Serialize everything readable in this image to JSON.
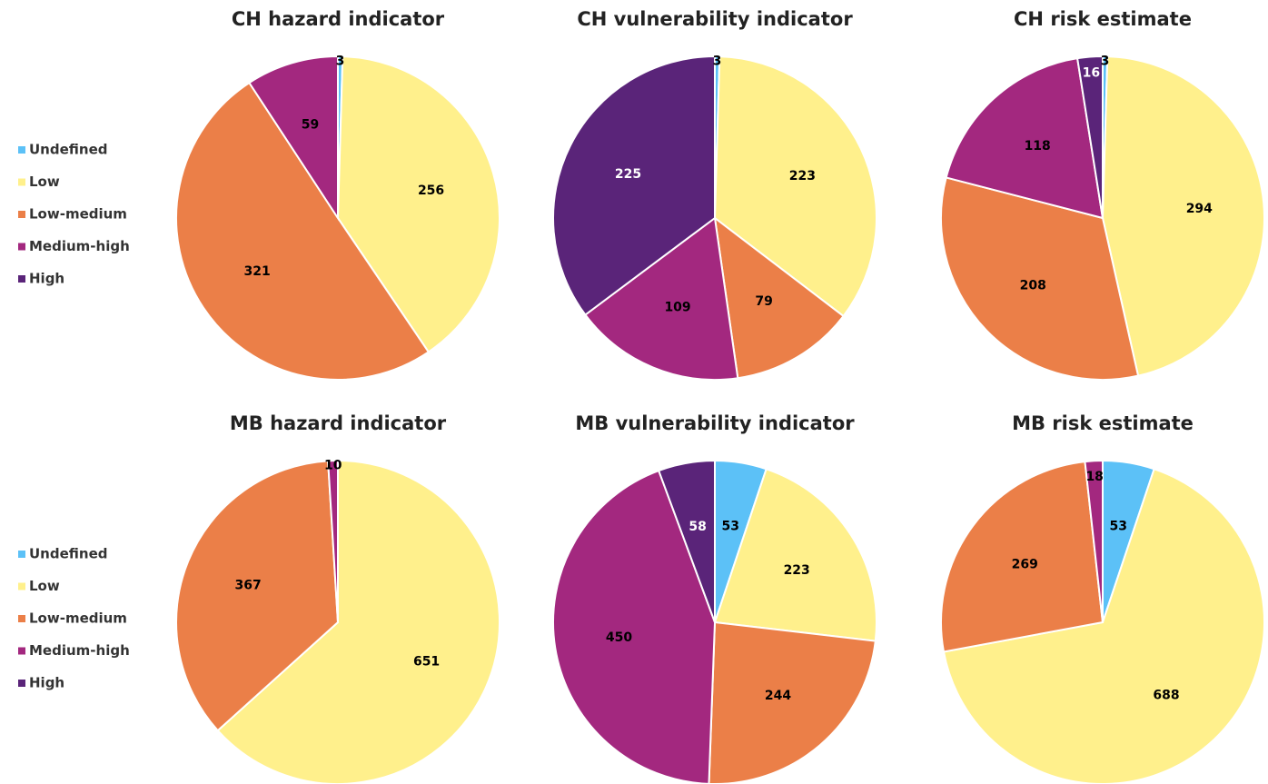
{
  "chart_data": [
    {
      "type": "pie",
      "title": "CH hazard indicator",
      "legend": "left",
      "categories": [
        "Undefined",
        "Low",
        "Low-medium",
        "Medium-high",
        "High"
      ],
      "values": [
        3,
        256,
        321,
        59,
        null
      ],
      "colors": [
        "#5cc1f7",
        "#fff08c",
        "#eb7f48",
        "#a3287f",
        "#5a2479"
      ],
      "label_colors": [
        "#000",
        "#000",
        "#000",
        "#000",
        "#fff"
      ]
    },
    {
      "type": "pie",
      "title": "CH vulnerability indicator",
      "categories": [
        "Undefined",
        "Low",
        "Low-medium",
        "Medium-high",
        "High"
      ],
      "values": [
        3,
        223,
        79,
        109,
        225
      ],
      "colors": [
        "#5cc1f7",
        "#fff08c",
        "#eb7f48",
        "#a3287f",
        "#5a2479"
      ],
      "label_colors": [
        "#000",
        "#000",
        "#000",
        "#000",
        "#fff"
      ]
    },
    {
      "type": "pie",
      "title": "CH risk estimate",
      "categories": [
        "Undefined",
        "Low",
        "Low-medium",
        "Medium-high",
        "High"
      ],
      "values": [
        3,
        294,
        208,
        118,
        16
      ],
      "colors": [
        "#5cc1f7",
        "#fff08c",
        "#eb7f48",
        "#a3287f",
        "#5a2479"
      ],
      "label_colors": [
        "#000",
        "#000",
        "#000",
        "#000",
        "#fff"
      ]
    },
    {
      "type": "pie",
      "title": "MB hazard indicator",
      "legend": "left",
      "categories": [
        "Undefined",
        "Low",
        "Low-medium",
        "Medium-high",
        "High"
      ],
      "values": [
        null,
        651,
        367,
        10,
        null
      ],
      "colors": [
        "#5cc1f7",
        "#fff08c",
        "#eb7f48",
        "#a3287f",
        "#5a2479"
      ],
      "label_colors": [
        "#000",
        "#000",
        "#000",
        "#000",
        "#fff"
      ]
    },
    {
      "type": "pie",
      "title": "MB vulnerability indicator",
      "categories": [
        "Undefined",
        "Low",
        "Low-medium",
        "Medium-high",
        "High"
      ],
      "values": [
        53,
        223,
        244,
        450,
        58
      ],
      "colors": [
        "#5cc1f7",
        "#fff08c",
        "#eb7f48",
        "#a3287f",
        "#5a2479"
      ],
      "label_colors": [
        "#000",
        "#000",
        "#000",
        "#000",
        "#fff"
      ]
    },
    {
      "type": "pie",
      "title": "MB risk estimate",
      "categories": [
        "Undefined",
        "Low",
        "Low-medium",
        "Medium-high",
        "High"
      ],
      "values": [
        53,
        688,
        269,
        18,
        null
      ],
      "colors": [
        "#5cc1f7",
        "#fff08c",
        "#eb7f48",
        "#a3287f",
        "#5a2479"
      ],
      "label_colors": [
        "#000",
        "#000",
        "#000",
        "#000",
        "#fff"
      ]
    }
  ]
}
